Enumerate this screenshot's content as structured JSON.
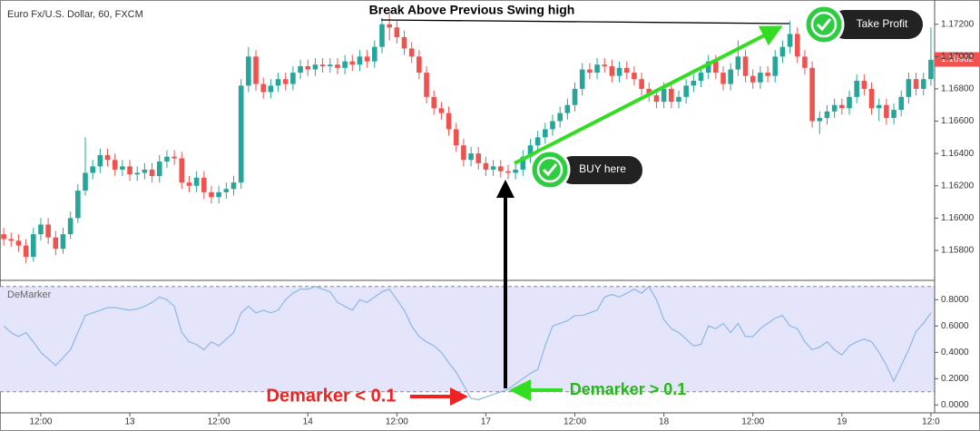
{
  "chart_data": [
    {
      "type": "candlestick",
      "title": "Euro Fx/U.S. Dollar, 60, FXCM",
      "annotations": [
        "Break Above Previous Swing high",
        "Take Profit",
        "BUY here"
      ],
      "up_color": "#26a69a",
      "down_color": "#ef5350",
      "last_price": 1.16982,
      "xlim": [
        -0.5,
        125.5
      ],
      "xticks": [
        {
          "value": 5,
          "label": "12:00"
        },
        {
          "value": 17,
          "label": "13"
        },
        {
          "value": 29,
          "label": "12:00"
        },
        {
          "value": 41,
          "label": "14"
        },
        {
          "value": 53,
          "label": "12:00"
        },
        {
          "value": 65,
          "label": "17"
        },
        {
          "value": 77,
          "label": "12:00"
        },
        {
          "value": 89,
          "label": "18"
        },
        {
          "value": 101,
          "label": "12:00"
        },
        {
          "value": 113,
          "label": "19"
        },
        {
          "value": 125,
          "label": "12:0"
        }
      ],
      "ylim": [
        1.1562,
        1.1735
      ],
      "yticks": [
        {
          "value": 1.158,
          "label": "1.15800"
        },
        {
          "value": 1.16,
          "label": "1.16000"
        },
        {
          "value": 1.162,
          "label": "1.16200"
        },
        {
          "value": 1.164,
          "label": "1.16400"
        },
        {
          "value": 1.166,
          "label": "1.16600"
        },
        {
          "value": 1.168,
          "label": "1.16800"
        },
        {
          "value": 1.17,
          "label": "1.17000"
        },
        {
          "value": 1.172,
          "label": "1.17200"
        }
      ],
      "opens": [
        1.159,
        1.1587,
        1.1586,
        1.1583,
        1.1576,
        1.159,
        1.1596,
        1.1588,
        1.1581,
        1.159,
        1.16,
        1.1617,
        1.1628,
        1.1632,
        1.1639,
        1.1636,
        1.163,
        1.1632,
        1.1627,
        1.1628,
        1.163,
        1.1626,
        1.1635,
        1.1638,
        1.1637,
        1.1622,
        1.162,
        1.1625,
        1.1616,
        1.1613,
        1.1616,
        1.1618,
        1.1622,
        1.1682,
        1.17,
        1.1683,
        1.1678,
        1.1682,
        1.1686,
        1.1683,
        1.169,
        1.1694,
        1.1692,
        1.1695,
        1.1694,
        1.1695,
        1.1693,
        1.1697,
        1.1695,
        1.17,
        1.1697,
        1.1706,
        1.172,
        1.1718,
        1.1712,
        1.1705,
        1.17,
        1.169,
        1.1675,
        1.1668,
        1.1665,
        1.1655,
        1.1645,
        1.1636,
        1.164,
        1.1634,
        1.163,
        1.1632,
        1.1629,
        1.1628,
        1.163,
        1.1638,
        1.1645,
        1.165,
        1.1655,
        1.166,
        1.1665,
        1.167,
        1.168,
        1.1692,
        1.169,
        1.1695,
        1.1694,
        1.1688,
        1.1693,
        1.169,
        1.1686,
        1.168,
        1.1676,
        1.1672,
        1.168,
        1.1672,
        1.1675,
        1.1682,
        1.1685,
        1.169,
        1.1697,
        1.169,
        1.1683,
        1.1692,
        1.17,
        1.1688,
        1.1684,
        1.169,
        1.1688,
        1.17,
        1.1706,
        1.1714,
        1.17,
        1.1693,
        1.166,
        1.1662,
        1.1666,
        1.167,
        1.1668,
        1.1675,
        1.1685,
        1.168,
        1.1668,
        1.167,
        1.1662,
        1.1667,
        1.1675,
        1.1686,
        1.168,
        1.1686
      ],
      "highs": [
        1.1594,
        1.1591,
        1.159,
        1.1587,
        1.1594,
        1.16,
        1.16,
        1.1592,
        1.1594,
        1.1604,
        1.1621,
        1.165,
        1.1636,
        1.1643,
        1.1643,
        1.164,
        1.1636,
        1.1636,
        1.1632,
        1.1634,
        1.1634,
        1.1639,
        1.1642,
        1.1642,
        1.1641,
        1.1626,
        1.1629,
        1.1629,
        1.162,
        1.162,
        1.1622,
        1.1626,
        1.1686,
        1.1706,
        1.1704,
        1.1687,
        1.1686,
        1.169,
        1.169,
        1.1694,
        1.1698,
        1.1698,
        1.1699,
        1.1699,
        1.1699,
        1.1699,
        1.1701,
        1.1701,
        1.1704,
        1.1704,
        1.171,
        1.1724,
        1.1728,
        1.1722,
        1.1716,
        1.1709,
        1.1704,
        1.1694,
        1.1679,
        1.1672,
        1.1669,
        1.1659,
        1.1649,
        1.1644,
        1.1644,
        1.1638,
        1.1636,
        1.1636,
        1.1633,
        1.1634,
        1.1642,
        1.1649,
        1.1654,
        1.1659,
        1.1664,
        1.1669,
        1.1674,
        1.1684,
        1.1696,
        1.1696,
        1.1699,
        1.1699,
        1.1698,
        1.1697,
        1.1697,
        1.1694,
        1.169,
        1.1684,
        1.168,
        1.1684,
        1.1684,
        1.1679,
        1.1686,
        1.1689,
        1.1694,
        1.1701,
        1.1701,
        1.1694,
        1.1696,
        1.171,
        1.1704,
        1.1692,
        1.1694,
        1.1694,
        1.1704,
        1.171,
        1.1722,
        1.1718,
        1.1704,
        1.1697,
        1.1666,
        1.167,
        1.1674,
        1.1674,
        1.1679,
        1.1689,
        1.1689,
        1.1684,
        1.1674,
        1.1674,
        1.1671,
        1.1679,
        1.169,
        1.169,
        1.169,
        1.1718
      ],
      "lows": [
        1.1583,
        1.1582,
        1.1579,
        1.1572,
        1.1573,
        1.1586,
        1.1584,
        1.1577,
        1.1578,
        1.1587,
        1.1597,
        1.1614,
        1.1624,
        1.1628,
        1.1632,
        1.1626,
        1.1626,
        1.1623,
        1.1623,
        1.1624,
        1.1622,
        1.1622,
        1.1631,
        1.1633,
        1.1618,
        1.1616,
        1.1616,
        1.1612,
        1.1609,
        1.1609,
        1.1612,
        1.1614,
        1.1618,
        1.1678,
        1.1679,
        1.1674,
        1.1674,
        1.1678,
        1.1679,
        1.1679,
        1.1686,
        1.1688,
        1.1688,
        1.169,
        1.169,
        1.1689,
        1.1689,
        1.1691,
        1.1691,
        1.1693,
        1.1693,
        1.1702,
        1.171,
        1.1708,
        1.1701,
        1.1696,
        1.1686,
        1.1671,
        1.1664,
        1.1661,
        1.1651,
        1.1641,
        1.1632,
        1.1632,
        1.163,
        1.1626,
        1.1626,
        1.1625,
        1.1624,
        1.1624,
        1.1626,
        1.1634,
        1.1641,
        1.1646,
        1.1651,
        1.1656,
        1.1661,
        1.1666,
        1.1676,
        1.1686,
        1.1686,
        1.169,
        1.1684,
        1.1684,
        1.1686,
        1.1682,
        1.1676,
        1.1672,
        1.1668,
        1.1668,
        1.1668,
        1.1668,
        1.1671,
        1.1678,
        1.1681,
        1.1686,
        1.1686,
        1.1679,
        1.1679,
        1.1688,
        1.1684,
        1.168,
        1.168,
        1.1684,
        1.1684,
        1.1696,
        1.1702,
        1.1696,
        1.1689,
        1.1656,
        1.1652,
        1.1658,
        1.1662,
        1.1664,
        1.1664,
        1.1671,
        1.1676,
        1.1664,
        1.166,
        1.1658,
        1.1658,
        1.1663,
        1.1671,
        1.1676,
        1.1676,
        1.1682
      ],
      "closes": [
        1.1587,
        1.1586,
        1.1583,
        1.1576,
        1.159,
        1.1596,
        1.1588,
        1.1581,
        1.159,
        1.16,
        1.1617,
        1.1628,
        1.1632,
        1.1639,
        1.1636,
        1.163,
        1.1632,
        1.1627,
        1.1628,
        1.163,
        1.1626,
        1.1635,
        1.1638,
        1.1637,
        1.1622,
        1.162,
        1.1625,
        1.1616,
        1.1613,
        1.1616,
        1.1618,
        1.1622,
        1.1682,
        1.17,
        1.1683,
        1.1678,
        1.1682,
        1.1686,
        1.1683,
        1.169,
        1.1694,
        1.1692,
        1.1695,
        1.1694,
        1.1695,
        1.1693,
        1.1697,
        1.1695,
        1.17,
        1.1697,
        1.1706,
        1.172,
        1.1718,
        1.1712,
        1.1705,
        1.17,
        1.169,
        1.1675,
        1.1668,
        1.1665,
        1.1655,
        1.1645,
        1.1636,
        1.164,
        1.1634,
        1.163,
        1.1632,
        1.1629,
        1.1628,
        1.163,
        1.1638,
        1.1645,
        1.165,
        1.1655,
        1.166,
        1.1665,
        1.167,
        1.168,
        1.1692,
        1.169,
        1.1695,
        1.1694,
        1.1688,
        1.1693,
        1.169,
        1.1686,
        1.168,
        1.1676,
        1.1672,
        1.168,
        1.1672,
        1.1675,
        1.1682,
        1.1685,
        1.169,
        1.1697,
        1.169,
        1.1683,
        1.1692,
        1.17,
        1.1688,
        1.1684,
        1.169,
        1.1688,
        1.17,
        1.1706,
        1.1714,
        1.17,
        1.1693,
        1.166,
        1.1662,
        1.1666,
        1.167,
        1.1668,
        1.1675,
        1.1685,
        1.168,
        1.1668,
        1.167,
        1.1662,
        1.1667,
        1.1675,
        1.1686,
        1.168,
        1.1686,
        1.1698
      ]
    },
    {
      "type": "line",
      "title": "DeMarker",
      "annotations": [
        "Demarker < 0.1",
        "Demarker > 0.1"
      ],
      "color": "#8ab8e6",
      "band_color": "#e4e4fb",
      "levels": [
        0.1,
        0.9
      ],
      "xlim": [
        -0.5,
        125.5
      ],
      "ylim": [
        -0.06,
        0.94
      ],
      "yticks": [
        {
          "value": 0,
          "label": "0.0000"
        },
        {
          "value": 0.2,
          "label": "0.2000"
        },
        {
          "value": 0.4,
          "label": "0.4000"
        },
        {
          "value": 0.6,
          "label": "0.6000"
        },
        {
          "value": 0.8,
          "label": "0.8000"
        }
      ],
      "values": [
        0.6,
        0.55,
        0.52,
        0.55,
        0.48,
        0.4,
        0.35,
        0.3,
        0.36,
        0.42,
        0.55,
        0.68,
        0.7,
        0.72,
        0.74,
        0.74,
        0.73,
        0.72,
        0.73,
        0.75,
        0.78,
        0.82,
        0.8,
        0.75,
        0.55,
        0.48,
        0.46,
        0.42,
        0.48,
        0.45,
        0.5,
        0.55,
        0.7,
        0.75,
        0.7,
        0.72,
        0.7,
        0.72,
        0.8,
        0.85,
        0.88,
        0.88,
        0.9,
        0.88,
        0.86,
        0.78,
        0.75,
        0.72,
        0.8,
        0.78,
        0.82,
        0.86,
        0.88,
        0.8,
        0.72,
        0.6,
        0.52,
        0.48,
        0.45,
        0.4,
        0.32,
        0.25,
        0.15,
        0.05,
        0.04,
        0.06,
        0.08,
        0.1,
        0.12,
        0.16,
        0.2,
        0.24,
        0.27,
        0.45,
        0.6,
        0.62,
        0.64,
        0.68,
        0.68,
        0.7,
        0.72,
        0.82,
        0.84,
        0.82,
        0.85,
        0.88,
        0.85,
        0.9,
        0.8,
        0.65,
        0.58,
        0.55,
        0.5,
        0.45,
        0.46,
        0.6,
        0.58,
        0.62,
        0.55,
        0.62,
        0.52,
        0.52,
        0.58,
        0.62,
        0.66,
        0.68,
        0.6,
        0.58,
        0.48,
        0.42,
        0.44,
        0.48,
        0.42,
        0.38,
        0.45,
        0.48,
        0.5,
        0.48,
        0.4,
        0.3,
        0.18,
        0.3,
        0.42,
        0.56,
        0.62,
        0.7
      ]
    }
  ]
}
